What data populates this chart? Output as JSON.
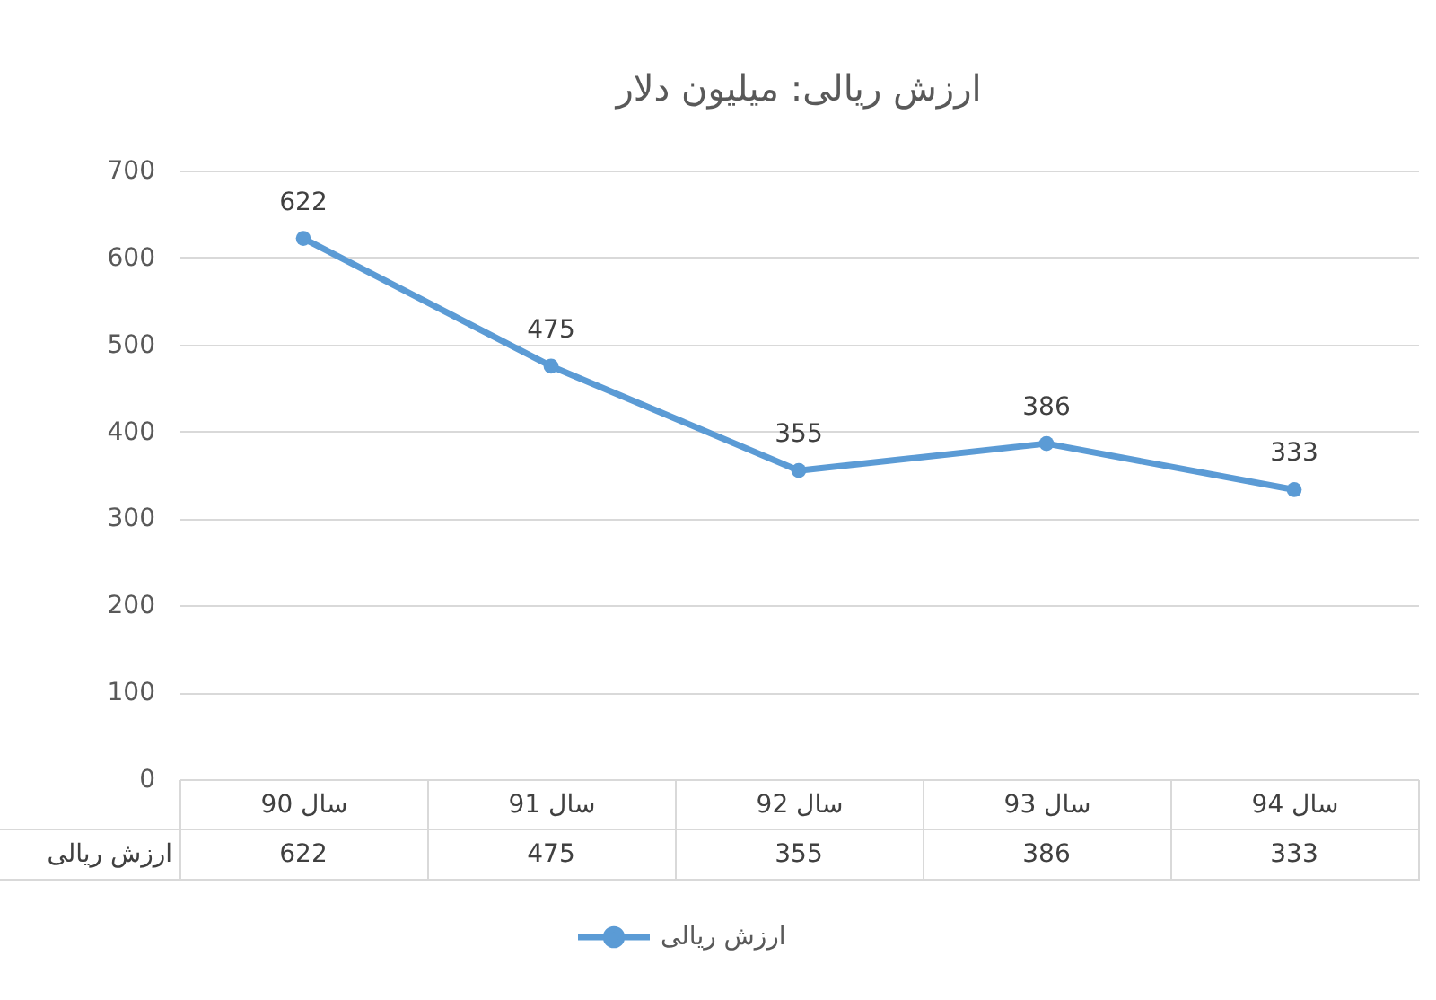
{
  "chart_data": {
    "type": "line",
    "title": "ارزش ریالی: میلیون دلار",
    "categories": [
      "سال 90",
      "سال 91",
      "سال 92",
      "سال 93",
      "سال 94"
    ],
    "series": [
      {
        "name": "ارزش ریالی",
        "color": "#5b9bd5",
        "values": [
          622,
          475,
          355,
          386,
          333
        ]
      }
    ],
    "ylim": [
      0,
      700
    ],
    "yticks": [
      0,
      100,
      200,
      300,
      400,
      500,
      600,
      700
    ],
    "grid": "y",
    "legend": "bottom",
    "marker": "circle",
    "data_labels": true,
    "annotations": [
      "622",
      "475",
      "355",
      "386",
      "333"
    ]
  }
}
